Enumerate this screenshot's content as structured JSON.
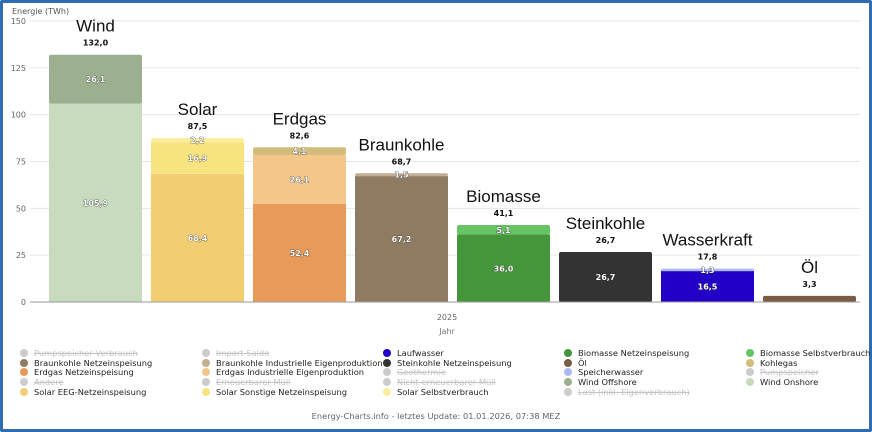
{
  "chart_data": {
    "type": "bar",
    "stacked": true,
    "ylabel": "Energie (TWh)",
    "xlabel": "Jahr",
    "x_tick": "2025",
    "ylim": [
      0,
      150
    ],
    "yticks": [
      0,
      25,
      50,
      75,
      100,
      125,
      150
    ],
    "grid": true,
    "categories": [
      "Wind",
      "Solar",
      "Erdgas",
      "Braunkohle",
      "Biomasse",
      "Steinkohle",
      "Wasserkraft",
      "Öl"
    ],
    "totals": [
      "132,0",
      "87,5",
      "82,6",
      "68,7",
      "41,1",
      "26,7",
      "17,8",
      "3,3"
    ],
    "bars": [
      {
        "category": "Wind",
        "segments": [
          {
            "series": "Wind Onshore",
            "value": 105.9,
            "label": "105,9",
            "color": "#c8dbbe"
          },
          {
            "series": "Wind Offshore",
            "value": 26.1,
            "label": "26,1",
            "color": "#9caf8f"
          }
        ]
      },
      {
        "category": "Solar",
        "segments": [
          {
            "series": "Solar EEG-Netzeinspeisung",
            "value": 68.4,
            "label": "68,4",
            "color": "#f3cd72"
          },
          {
            "series": "Solar Sonstige Netzeinspeisung",
            "value": 16.9,
            "label": "16,9",
            "color": "#f8e47e"
          },
          {
            "series": "Solar Selbstverbrauch",
            "value": 2.2,
            "label": "2,2",
            "color": "#faee9c"
          }
        ]
      },
      {
        "category": "Erdgas",
        "segments": [
          {
            "series": "Erdgas Netzeinspeisung",
            "value": 52.4,
            "label": "52,4",
            "color": "#e89a58"
          },
          {
            "series": "Erdgas Industrielle Eigenproduktion",
            "value": 26.1,
            "label": "26,1",
            "color": "#f2c789"
          },
          {
            "series": "Kohlegas",
            "value": 4.1,
            "label": "4,1",
            "color": "#d4bd7c"
          }
        ]
      },
      {
        "category": "Braunkohle",
        "segments": [
          {
            "series": "Braunkohle Netzeinspeisung",
            "value": 67.2,
            "label": "67,2",
            "color": "#8f7b62"
          },
          {
            "series": "Braunkohle Industrielle Eigenproduktion",
            "value": 1.5,
            "label": "1,5",
            "color": "#c4ae92"
          }
        ]
      },
      {
        "category": "Biomasse",
        "segments": [
          {
            "series": "Biomasse Netzeinspeisung",
            "value": 36.0,
            "label": "36,0",
            "color": "#45963a"
          },
          {
            "series": "Biomasse Selbstverbrauch",
            "value": 5.1,
            "label": "5,1",
            "color": "#66c466"
          }
        ]
      },
      {
        "category": "Steinkohle",
        "segments": [
          {
            "series": "Steinkohle Netzeinspeisung",
            "value": 26.7,
            "label": "26,7",
            "color": "#333333"
          }
        ]
      },
      {
        "category": "Wasserkraft",
        "segments": [
          {
            "series": "Laufwasser",
            "value": 16.5,
            "label": "16,5",
            "color": "#2200c6"
          },
          {
            "series": "Speicherwasser",
            "value": 1.3,
            "label": "1,3",
            "color": "#abb9f5"
          }
        ]
      },
      {
        "category": "Öl",
        "segments": [
          {
            "series": "Öl",
            "value": 3.3,
            "label": "",
            "color": "#7a5c45"
          }
        ]
      }
    ],
    "legend_placement": "bottom",
    "legend": [
      {
        "label": "Pumpspeicher Verbrauch",
        "color": "#cccccc",
        "enabled": false
      },
      {
        "label": "Import Saldo",
        "color": "#cccccc",
        "enabled": false
      },
      {
        "label": "Laufwasser",
        "color": "#2200c6",
        "enabled": true
      },
      {
        "label": "Biomasse Netzeinspeisung",
        "color": "#45963a",
        "enabled": true
      },
      {
        "label": "Biomasse Selbstverbrauch",
        "color": "#66c466",
        "enabled": true
      },
      {
        "label": "Braunkohle Netzeinspeisung",
        "color": "#8f7b62",
        "enabled": true
      },
      {
        "label": "Braunkohle Industrielle Eigenproduktion",
        "color": "#c4ae92",
        "enabled": true
      },
      {
        "label": "Steinkohle Netzeinspeisung",
        "color": "#333333",
        "enabled": true
      },
      {
        "label": "Öl",
        "color": "#7a5c45",
        "enabled": true
      },
      {
        "label": "Kohlegas",
        "color": "#d4bd7c",
        "enabled": true
      },
      {
        "label": "Erdgas Netzeinspeisung",
        "color": "#e89a58",
        "enabled": true
      },
      {
        "label": "Erdgas Industrielle Eigenproduktion",
        "color": "#f2c789",
        "enabled": true
      },
      {
        "label": "Geothermie",
        "color": "#cccccc",
        "enabled": false
      },
      {
        "label": "Speicherwasser",
        "color": "#abb9f5",
        "enabled": true
      },
      {
        "label": "Pumpspeicher",
        "color": "#cccccc",
        "enabled": false
      },
      {
        "label": "Andere",
        "color": "#cccccc",
        "enabled": false
      },
      {
        "label": "Erneuerbarer Müll",
        "color": "#cccccc",
        "enabled": false
      },
      {
        "label": "Nicht-erneuerbarer Müll",
        "color": "#cccccc",
        "enabled": false
      },
      {
        "label": "Wind Offshore",
        "color": "#9caf8f",
        "enabled": true
      },
      {
        "label": "Wind Onshore",
        "color": "#c8dbbe",
        "enabled": true
      },
      {
        "label": "Solar EEG-Netzeinspeisung",
        "color": "#f3cd72",
        "enabled": true
      },
      {
        "label": "Solar Sonstige Netzeinspeisung",
        "color": "#f8e47e",
        "enabled": true
      },
      {
        "label": "Solar Selbstverbrauch",
        "color": "#faee9c",
        "enabled": true
      },
      {
        "label": "Last (inkl. Eigenverbrauch)",
        "color": "#cccccc",
        "enabled": false
      }
    ]
  },
  "footer": "Energy-Charts.info - letztes Update: 01.01.2026, 07:38 MEZ",
  "frame_color": "#2f6db3"
}
